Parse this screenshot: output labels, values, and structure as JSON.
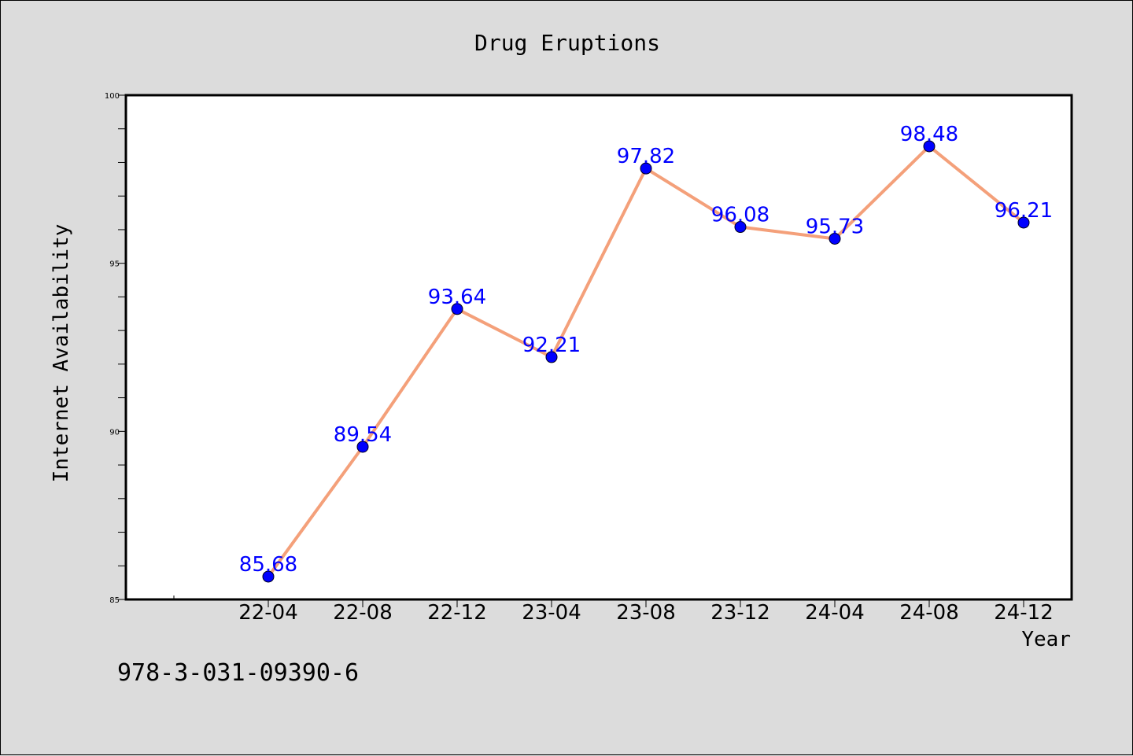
{
  "chart_data": {
    "type": "line",
    "title": "Drug Eruptions",
    "xlabel": "Year",
    "ylabel": "Internet Availability",
    "categories": [
      "22-04",
      "22-08",
      "22-12",
      "23-04",
      "23-08",
      "23-12",
      "24-04",
      "24-08",
      "24-12"
    ],
    "values": [
      85.68,
      89.54,
      93.64,
      92.21,
      97.82,
      96.08,
      95.73,
      98.48,
      96.21
    ],
    "data_labels": [
      "85.68",
      "89.54",
      "93.64",
      "92.21",
      "97.82",
      "96.08",
      "95.73",
      "98.48",
      "96.21"
    ],
    "ylim": [
      85,
      100
    ],
    "yticks": [
      "85",
      "90",
      "95",
      "100"
    ],
    "grid": false,
    "line_color": "#f4a07a",
    "marker_color": "#0000ff",
    "label_color": "#0000ff"
  },
  "footnote": "978-3-031-09390-6"
}
